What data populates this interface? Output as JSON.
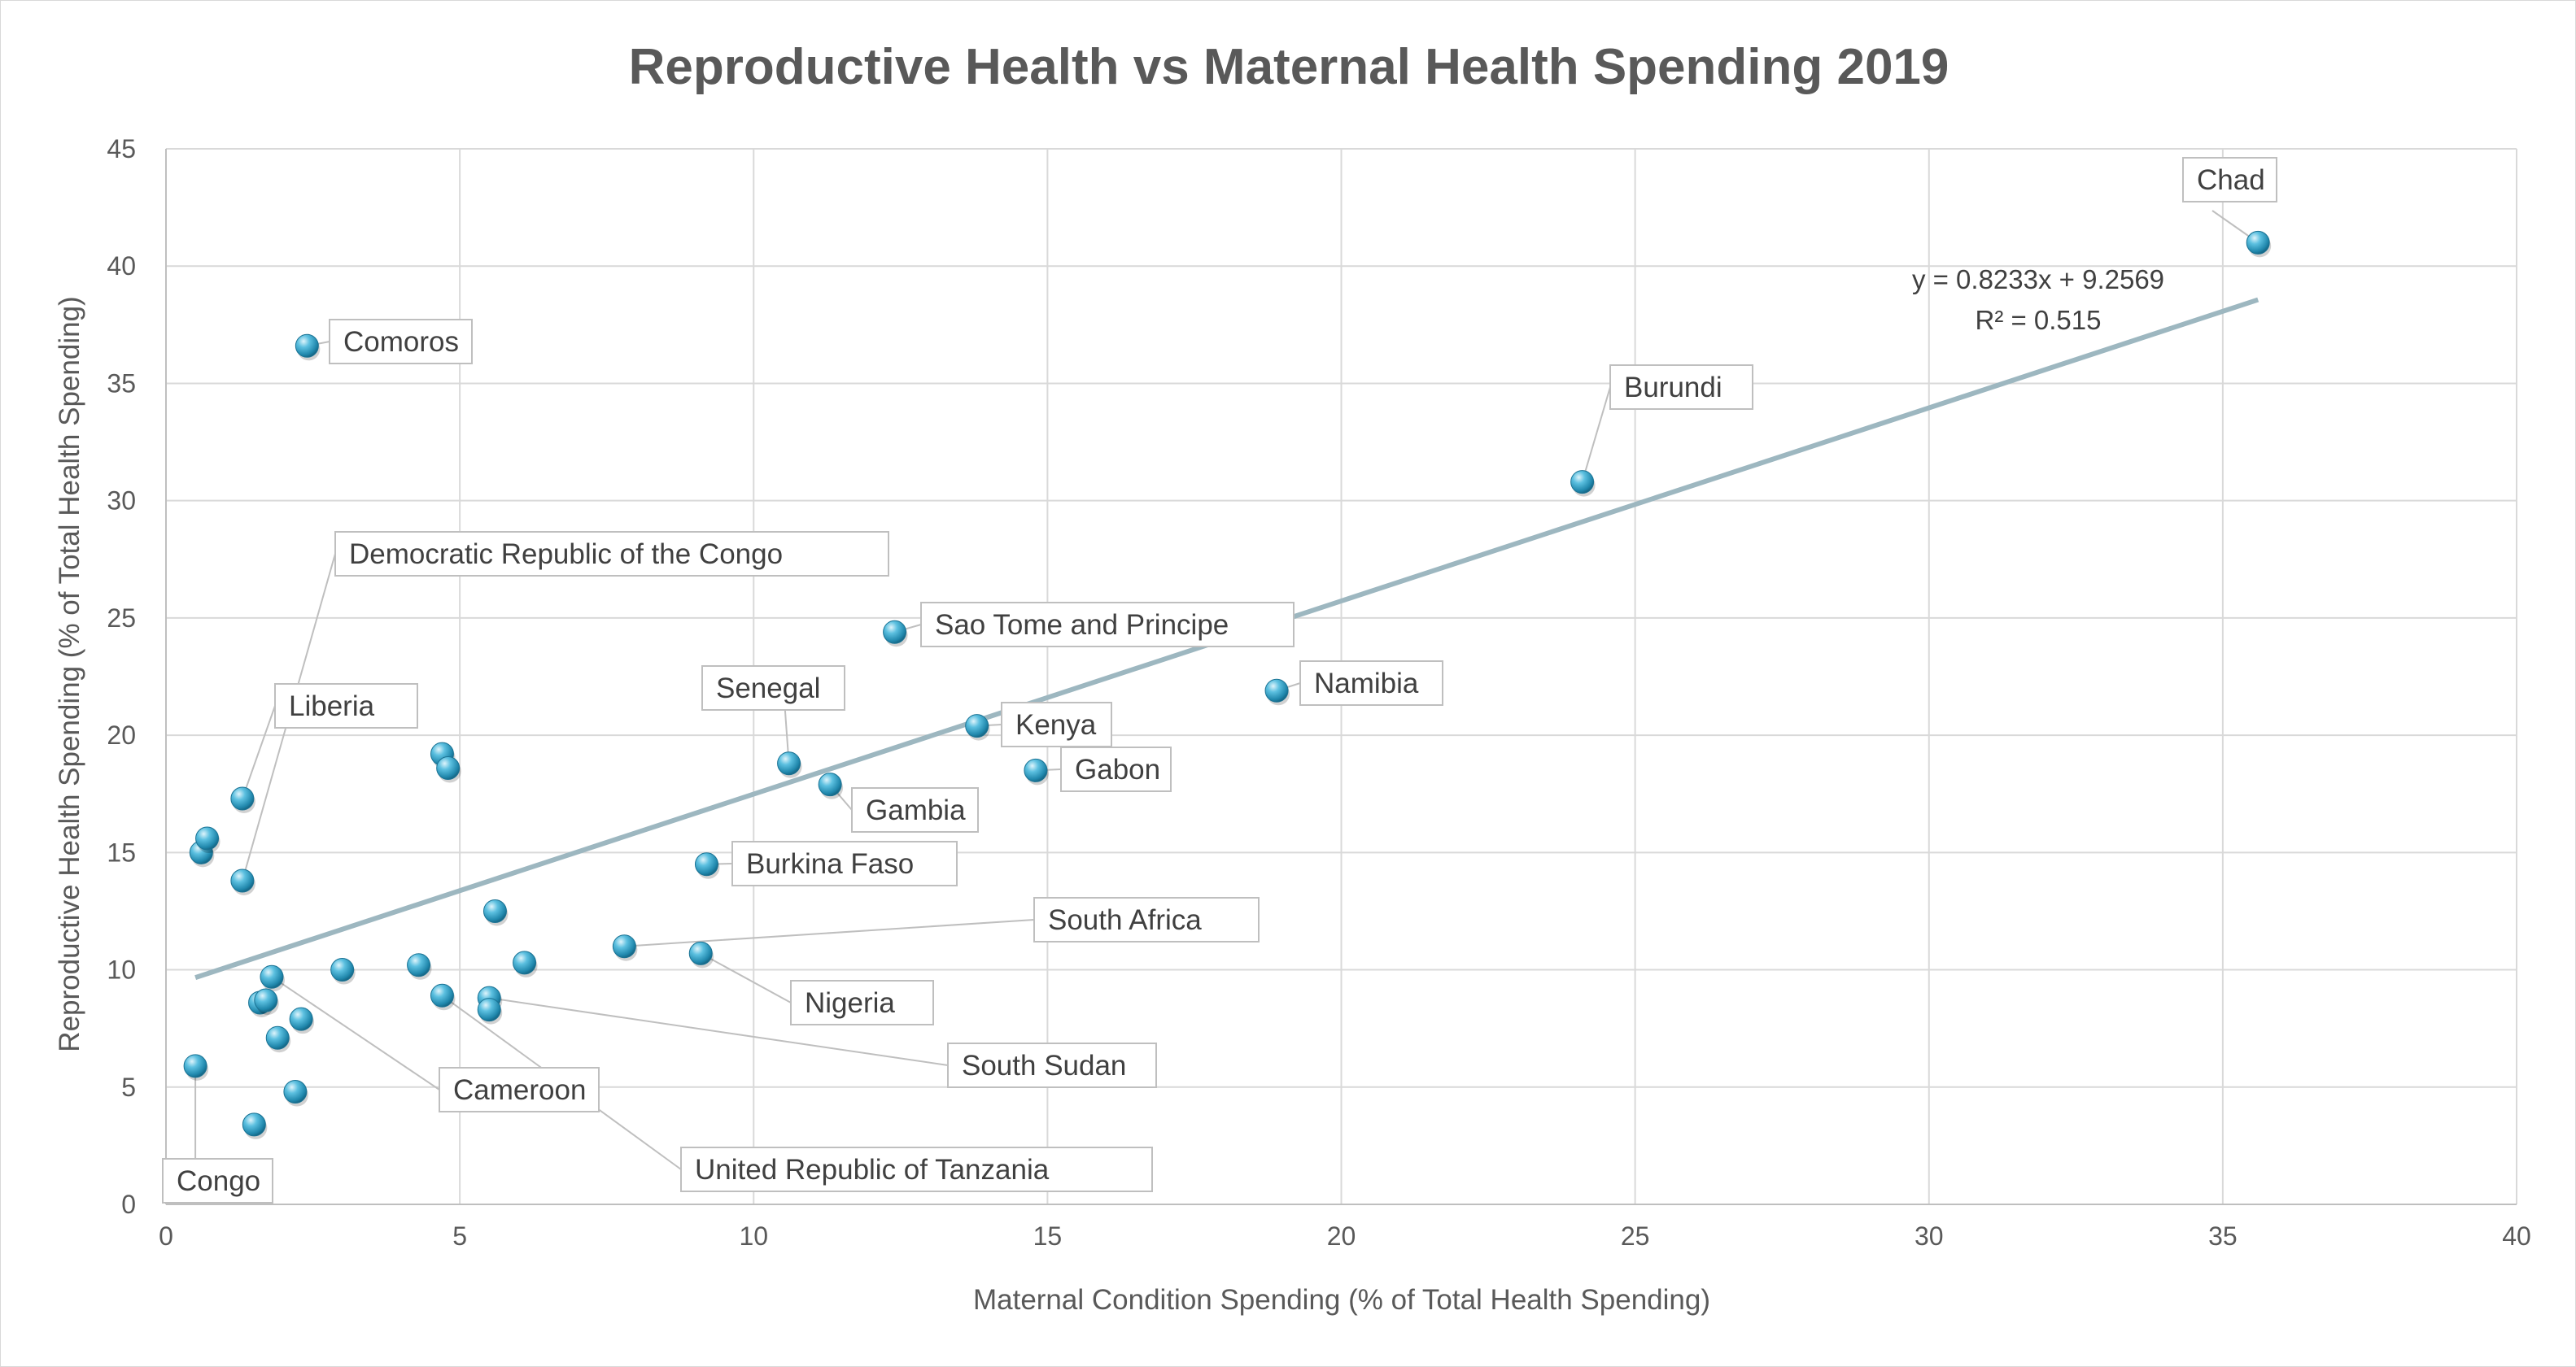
{
  "chart_data": {
    "type": "scatter",
    "title": "Reproductive Health vs Maternal Health Spending 2019",
    "xlabel": "Maternal Condition Spending (% of Total Health Spending)",
    "ylabel": "Reproductive Health Spending (% of Total Health Spending)",
    "xlim": [
      0,
      40
    ],
    "ylim": [
      0,
      45
    ],
    "x_ticks": [
      0,
      5,
      10,
      15,
      20,
      25,
      30,
      35,
      40
    ],
    "y_ticks": [
      0,
      5,
      10,
      15,
      20,
      25,
      30,
      35,
      40,
      45
    ],
    "grid": true,
    "marker_color": "#2e9fc4",
    "trendline_color": "#9db7c0",
    "trendline": {
      "slope": 0.8233,
      "intercept": 9.2569,
      "x_range": [
        0.5,
        35.6
      ],
      "equation": "y = 0.8233x + 9.2569",
      "r_squared": "R² = 0.515"
    },
    "points": [
      {
        "x": 35.6,
        "y": 41.0,
        "label": "Chad"
      },
      {
        "x": 24.1,
        "y": 30.8,
        "label": "Burundi"
      },
      {
        "x": 2.4,
        "y": 36.6,
        "label": "Comoros"
      },
      {
        "x": 12.4,
        "y": 24.4,
        "label": "Sao Tome and Principe"
      },
      {
        "x": 18.9,
        "y": 21.9,
        "label": "Namibia"
      },
      {
        "x": 13.8,
        "y": 20.4,
        "label": "Kenya"
      },
      {
        "x": 14.8,
        "y": 18.5,
        "label": "Gabon"
      },
      {
        "x": 10.6,
        "y": 18.8,
        "label": "Senegal"
      },
      {
        "x": 11.3,
        "y": 17.9,
        "label": "Gambia"
      },
      {
        "x": 9.2,
        "y": 14.5,
        "label": "Burkina Faso"
      },
      {
        "x": 7.8,
        "y": 11.0,
        "label": "South Africa"
      },
      {
        "x": 9.1,
        "y": 10.7,
        "label": "Nigeria"
      },
      {
        "x": 1.3,
        "y": 17.3,
        "label": "Liberia"
      },
      {
        "x": 1.3,
        "y": 13.8,
        "label": "Democratic Republic of the Congo"
      },
      {
        "x": 1.8,
        "y": 9.7,
        "label": "Cameroon"
      },
      {
        "x": 5.5,
        "y": 8.8,
        "label": "South Sudan"
      },
      {
        "x": 4.7,
        "y": 8.9,
        "label": "United Republic of Tanzania"
      },
      {
        "x": 0.5,
        "y": 5.9,
        "label": "Congo"
      },
      {
        "x": 0.6,
        "y": 15.0,
        "label": ""
      },
      {
        "x": 0.7,
        "y": 15.6,
        "label": ""
      },
      {
        "x": 4.7,
        "y": 19.2,
        "label": ""
      },
      {
        "x": 4.8,
        "y": 18.6,
        "label": ""
      },
      {
        "x": 5.6,
        "y": 12.5,
        "label": ""
      },
      {
        "x": 6.1,
        "y": 10.3,
        "label": ""
      },
      {
        "x": 4.3,
        "y": 10.2,
        "label": ""
      },
      {
        "x": 3.0,
        "y": 10.0,
        "label": ""
      },
      {
        "x": 1.6,
        "y": 8.6,
        "label": ""
      },
      {
        "x": 1.7,
        "y": 8.7,
        "label": ""
      },
      {
        "x": 2.3,
        "y": 7.9,
        "label": ""
      },
      {
        "x": 1.9,
        "y": 7.1,
        "label": ""
      },
      {
        "x": 5.5,
        "y": 8.3,
        "label": ""
      },
      {
        "x": 2.2,
        "y": 4.8,
        "label": ""
      },
      {
        "x": 1.5,
        "y": 3.4,
        "label": ""
      }
    ]
  }
}
